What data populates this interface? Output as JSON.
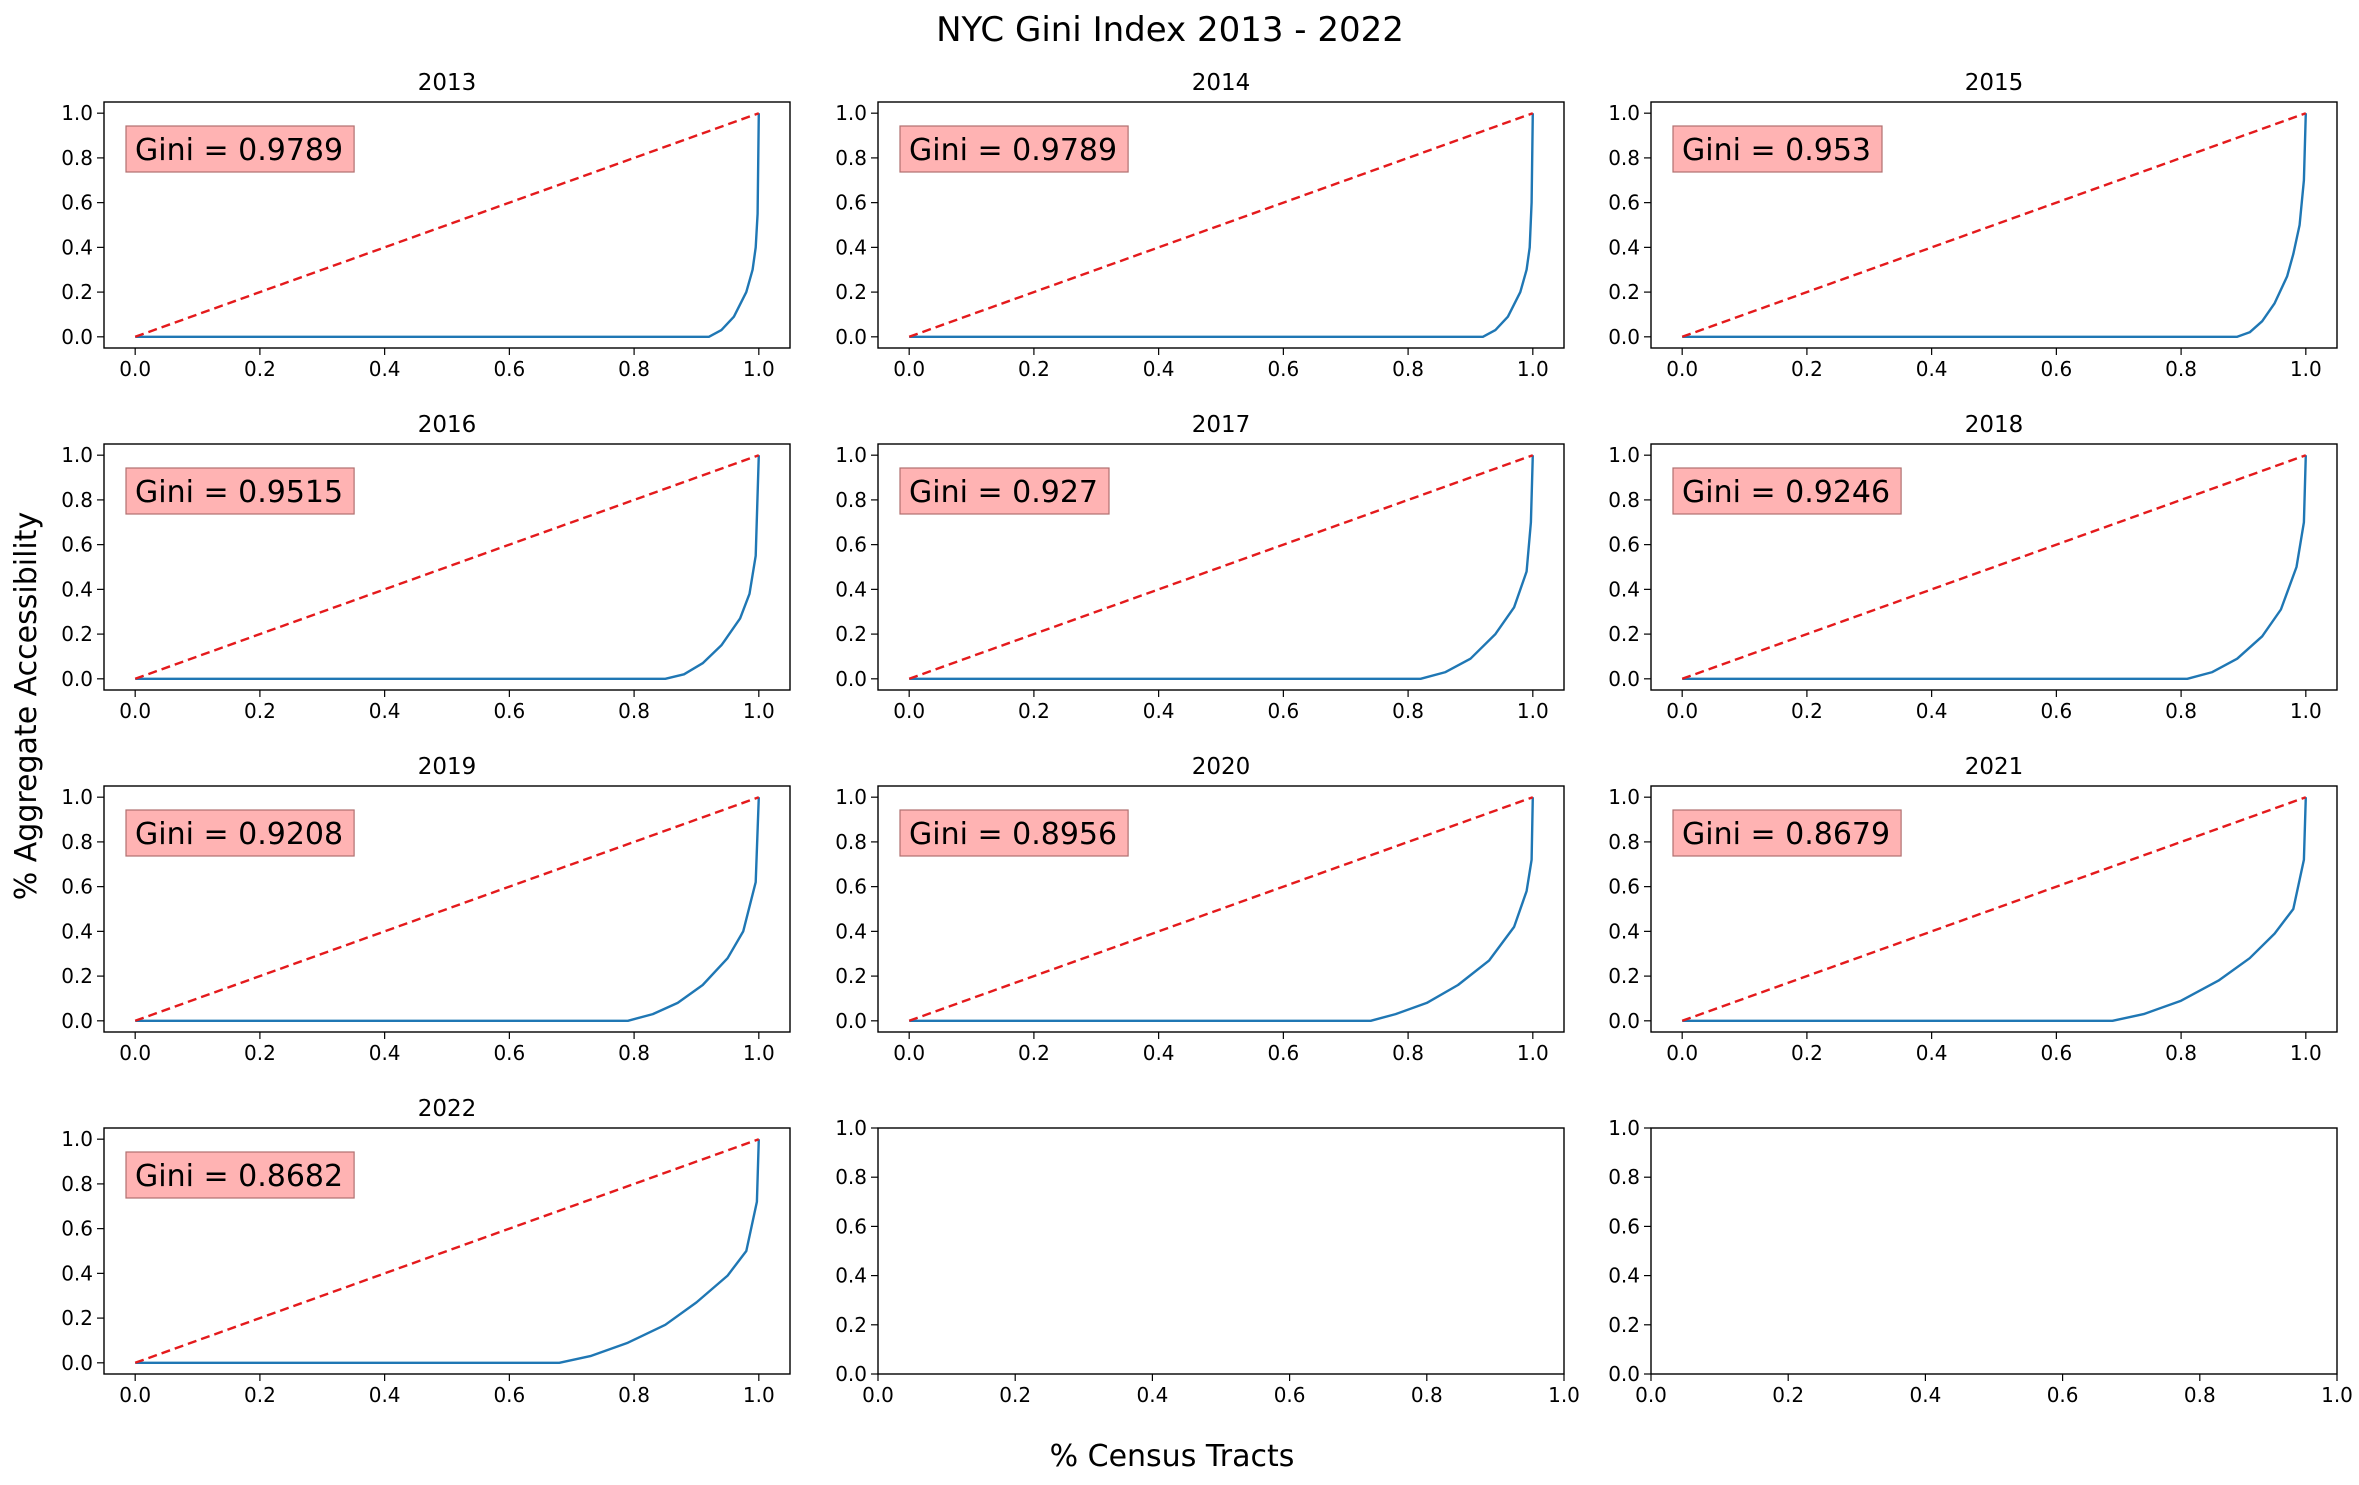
{
  "figure": {
    "title": "NYC Gini Index 2013 - 2022",
    "xlabel": "% Census Tracts",
    "ylabel": "% Aggregate Accessibility"
  },
  "colors": {
    "lorenz": "#1f77b4",
    "equality": "#e41a1c",
    "box_fill": "#ffb3b3",
    "box_edge": "#b07070"
  },
  "chart_data": [
    {
      "type": "line",
      "title": "2013",
      "gini_label": "Gini = 0.9789",
      "xlim": [
        -0.05,
        1.05
      ],
      "ylim": [
        -0.05,
        1.05
      ],
      "x_ticks": [
        "0.0",
        "0.2",
        "0.4",
        "0.6",
        "0.8",
        "1.0"
      ],
      "y_ticks": [
        "0.0",
        "0.2",
        "0.4",
        "0.6",
        "0.8",
        "1.0"
      ],
      "series": [
        {
          "values": [
            [
              0,
              0
            ],
            [
              0.92,
              0
            ],
            [
              0.94,
              0.03
            ],
            [
              0.96,
              0.09
            ],
            [
              0.98,
              0.2
            ],
            [
              0.99,
              0.3
            ],
            [
              0.995,
              0.4
            ],
            [
              0.998,
              0.55
            ],
            [
              1,
              1
            ]
          ]
        },
        {
          "values": [
            [
              0,
              0
            ],
            [
              1,
              1
            ]
          ]
        }
      ]
    },
    {
      "type": "line",
      "title": "2014",
      "gini_label": "Gini = 0.9789",
      "xlim": [
        -0.05,
        1.05
      ],
      "ylim": [
        -0.05,
        1.05
      ],
      "x_ticks": [
        "0.0",
        "0.2",
        "0.4",
        "0.6",
        "0.8",
        "1.0"
      ],
      "y_ticks": [
        "0.0",
        "0.2",
        "0.4",
        "0.6",
        "0.8",
        "1.0"
      ],
      "series": [
        {
          "values": [
            [
              0,
              0
            ],
            [
              0.92,
              0
            ],
            [
              0.94,
              0.03
            ],
            [
              0.96,
              0.09
            ],
            [
              0.98,
              0.2
            ],
            [
              0.99,
              0.3
            ],
            [
              0.995,
              0.4
            ],
            [
              0.998,
              0.6
            ],
            [
              1,
              1
            ]
          ]
        },
        {
          "values": [
            [
              0,
              0
            ],
            [
              1,
              1
            ]
          ]
        }
      ]
    },
    {
      "type": "line",
      "title": "2015",
      "gini_label": "Gini = 0.953",
      "xlim": [
        -0.05,
        1.05
      ],
      "ylim": [
        -0.05,
        1.05
      ],
      "x_ticks": [
        "0.0",
        "0.2",
        "0.4",
        "0.6",
        "0.8",
        "1.0"
      ],
      "y_ticks": [
        "0.0",
        "0.2",
        "0.4",
        "0.6",
        "0.8",
        "1.0"
      ],
      "series": [
        {
          "values": [
            [
              0,
              0
            ],
            [
              0.89,
              0
            ],
            [
              0.91,
              0.02
            ],
            [
              0.93,
              0.07
            ],
            [
              0.95,
              0.15
            ],
            [
              0.97,
              0.27
            ],
            [
              0.98,
              0.37
            ],
            [
              0.99,
              0.5
            ],
            [
              0.997,
              0.7
            ],
            [
              1,
              1
            ]
          ]
        },
        {
          "values": [
            [
              0,
              0
            ],
            [
              1,
              1
            ]
          ]
        }
      ]
    },
    {
      "type": "line",
      "title": "2016",
      "gini_label": "Gini = 0.9515",
      "xlim": [
        -0.05,
        1.05
      ],
      "ylim": [
        -0.05,
        1.05
      ],
      "x_ticks": [
        "0.0",
        "0.2",
        "0.4",
        "0.6",
        "0.8",
        "1.0"
      ],
      "y_ticks": [
        "0.0",
        "0.2",
        "0.4",
        "0.6",
        "0.8",
        "1.0"
      ],
      "series": [
        {
          "values": [
            [
              0,
              0
            ],
            [
              0.85,
              0
            ],
            [
              0.88,
              0.02
            ],
            [
              0.91,
              0.07
            ],
            [
              0.94,
              0.15
            ],
            [
              0.97,
              0.27
            ],
            [
              0.985,
              0.38
            ],
            [
              0.995,
              0.55
            ],
            [
              1,
              1
            ]
          ]
        },
        {
          "values": [
            [
              0,
              0
            ],
            [
              1,
              1
            ]
          ]
        }
      ]
    },
    {
      "type": "line",
      "title": "2017",
      "gini_label": "Gini = 0.927",
      "xlim": [
        -0.05,
        1.05
      ],
      "ylim": [
        -0.05,
        1.05
      ],
      "x_ticks": [
        "0.0",
        "0.2",
        "0.4",
        "0.6",
        "0.8",
        "1.0"
      ],
      "y_ticks": [
        "0.0",
        "0.2",
        "0.4",
        "0.6",
        "0.8",
        "1.0"
      ],
      "series": [
        {
          "values": [
            [
              0,
              0
            ],
            [
              0.82,
              0
            ],
            [
              0.86,
              0.03
            ],
            [
              0.9,
              0.09
            ],
            [
              0.94,
              0.2
            ],
            [
              0.97,
              0.32
            ],
            [
              0.99,
              0.48
            ],
            [
              0.997,
              0.7
            ],
            [
              1,
              1
            ]
          ]
        },
        {
          "values": [
            [
              0,
              0
            ],
            [
              1,
              1
            ]
          ]
        }
      ]
    },
    {
      "type": "line",
      "title": "2018",
      "gini_label": "Gini = 0.9246",
      "xlim": [
        -0.05,
        1.05
      ],
      "ylim": [
        -0.05,
        1.05
      ],
      "x_ticks": [
        "0.0",
        "0.2",
        "0.4",
        "0.6",
        "0.8",
        "1.0"
      ],
      "y_ticks": [
        "0.0",
        "0.2",
        "0.4",
        "0.6",
        "0.8",
        "1.0"
      ],
      "series": [
        {
          "values": [
            [
              0,
              0
            ],
            [
              0.81,
              0
            ],
            [
              0.85,
              0.03
            ],
            [
              0.89,
              0.09
            ],
            [
              0.93,
              0.19
            ],
            [
              0.96,
              0.31
            ],
            [
              0.985,
              0.5
            ],
            [
              0.997,
              0.7
            ],
            [
              1,
              1
            ]
          ]
        },
        {
          "values": [
            [
              0,
              0
            ],
            [
              1,
              1
            ]
          ]
        }
      ]
    },
    {
      "type": "line",
      "title": "2019",
      "gini_label": "Gini = 0.9208",
      "xlim": [
        -0.05,
        1.05
      ],
      "ylim": [
        -0.05,
        1.05
      ],
      "x_ticks": [
        "0.0",
        "0.2",
        "0.4",
        "0.6",
        "0.8",
        "1.0"
      ],
      "y_ticks": [
        "0.0",
        "0.2",
        "0.4",
        "0.6",
        "0.8",
        "1.0"
      ],
      "series": [
        {
          "values": [
            [
              0,
              0
            ],
            [
              0.79,
              0
            ],
            [
              0.83,
              0.03
            ],
            [
              0.87,
              0.08
            ],
            [
              0.91,
              0.16
            ],
            [
              0.95,
              0.28
            ],
            [
              0.975,
              0.4
            ],
            [
              0.995,
              0.62
            ],
            [
              1,
              1
            ]
          ]
        },
        {
          "values": [
            [
              0,
              0
            ],
            [
              1,
              1
            ]
          ]
        }
      ]
    },
    {
      "type": "line",
      "title": "2020",
      "gini_label": "Gini = 0.8956",
      "xlim": [
        -0.05,
        1.05
      ],
      "ylim": [
        -0.05,
        1.05
      ],
      "x_ticks": [
        "0.0",
        "0.2",
        "0.4",
        "0.6",
        "0.8",
        "1.0"
      ],
      "y_ticks": [
        "0.0",
        "0.2",
        "0.4",
        "0.6",
        "0.8",
        "1.0"
      ],
      "series": [
        {
          "values": [
            [
              0,
              0
            ],
            [
              0.74,
              0
            ],
            [
              0.78,
              0.03
            ],
            [
              0.83,
              0.08
            ],
            [
              0.88,
              0.16
            ],
            [
              0.93,
              0.27
            ],
            [
              0.97,
              0.42
            ],
            [
              0.99,
              0.58
            ],
            [
              0.998,
              0.72
            ],
            [
              1,
              1
            ]
          ]
        },
        {
          "values": [
            [
              0,
              0
            ],
            [
              1,
              1
            ]
          ]
        }
      ]
    },
    {
      "type": "line",
      "title": "2021",
      "gini_label": "Gini = 0.8679",
      "xlim": [
        -0.05,
        1.05
      ],
      "ylim": [
        -0.05,
        1.05
      ],
      "x_ticks": [
        "0.0",
        "0.2",
        "0.4",
        "0.6",
        "0.8",
        "1.0"
      ],
      "y_ticks": [
        "0.0",
        "0.2",
        "0.4",
        "0.6",
        "0.8",
        "1.0"
      ],
      "series": [
        {
          "values": [
            [
              0,
              0
            ],
            [
              0.69,
              0
            ],
            [
              0.74,
              0.03
            ],
            [
              0.8,
              0.09
            ],
            [
              0.86,
              0.18
            ],
            [
              0.91,
              0.28
            ],
            [
              0.95,
              0.39
            ],
            [
              0.98,
              0.5
            ],
            [
              0.997,
              0.72
            ],
            [
              1,
              1
            ]
          ]
        },
        {
          "values": [
            [
              0,
              0
            ],
            [
              1,
              1
            ]
          ]
        }
      ]
    },
    {
      "type": "line",
      "title": "2022",
      "gini_label": "Gini = 0.8682",
      "xlim": [
        -0.05,
        1.05
      ],
      "ylim": [
        -0.05,
        1.05
      ],
      "x_ticks": [
        "0.0",
        "0.2",
        "0.4",
        "0.6",
        "0.8",
        "1.0"
      ],
      "y_ticks": [
        "0.0",
        "0.2",
        "0.4",
        "0.6",
        "0.8",
        "1.0"
      ],
      "series": [
        {
          "values": [
            [
              0,
              0
            ],
            [
              0.68,
              0
            ],
            [
              0.73,
              0.03
            ],
            [
              0.79,
              0.09
            ],
            [
              0.85,
              0.17
            ],
            [
              0.9,
              0.27
            ],
            [
              0.95,
              0.39
            ],
            [
              0.98,
              0.5
            ],
            [
              0.997,
              0.72
            ],
            [
              1,
              1
            ]
          ]
        },
        {
          "values": [
            [
              0,
              0
            ],
            [
              1,
              1
            ]
          ]
        }
      ]
    },
    {
      "type": "line",
      "title": "",
      "gini_label": "",
      "xlim": [
        0,
        1
      ],
      "ylim": [
        0,
        1
      ],
      "x_ticks": [
        "0.0",
        "0.2",
        "0.4",
        "0.6",
        "0.8",
        "1.0"
      ],
      "y_ticks": [
        "0.0",
        "0.2",
        "0.4",
        "0.6",
        "0.8",
        "1.0"
      ],
      "series": []
    },
    {
      "type": "line",
      "title": "",
      "gini_label": "",
      "xlim": [
        0,
        1
      ],
      "ylim": [
        0,
        1
      ],
      "x_ticks": [
        "0.0",
        "0.2",
        "0.4",
        "0.6",
        "0.8",
        "1.0"
      ],
      "y_ticks": [
        "0.0",
        "0.2",
        "0.4",
        "0.6",
        "0.8",
        "1.0"
      ],
      "series": []
    }
  ]
}
